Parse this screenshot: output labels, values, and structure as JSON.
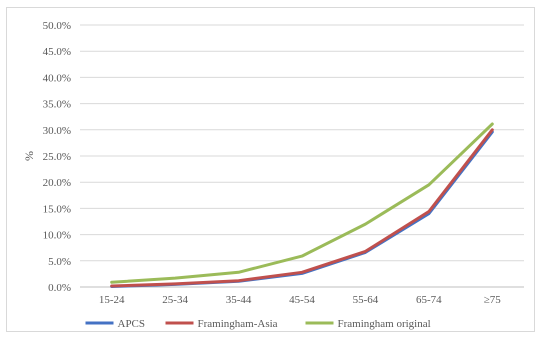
{
  "chart_data": {
    "type": "line",
    "categories": [
      "15-24",
      "25-34",
      "35-44",
      "45-54",
      "55-64",
      "65-74",
      "≥75"
    ],
    "series": [
      {
        "name": "APCS",
        "color": "#4472c4",
        "values": [
          0.1,
          0.5,
          1.1,
          2.6,
          6.6,
          14.0,
          29.6
        ]
      },
      {
        "name": "Framingham-Asia",
        "color": "#c0504d",
        "values": [
          0.2,
          0.6,
          1.2,
          2.8,
          6.8,
          14.4,
          30.0
        ]
      },
      {
        "name": "Framingham original",
        "color": "#9bbb59",
        "values": [
          0.9,
          1.7,
          2.8,
          5.9,
          12.0,
          19.5,
          31.1
        ]
      }
    ],
    "ylabel": "%",
    "xlabel": "",
    "title": "",
    "ylim": [
      0,
      50
    ],
    "yticks": [
      "0.0%",
      "5.0%",
      "10.0%",
      "15.0%",
      "20.0%",
      "25.0%",
      "30.0%",
      "35.0%",
      "40.0%",
      "45.0%",
      "50.0%"
    ],
    "grid": true,
    "legend_position": "bottom"
  }
}
